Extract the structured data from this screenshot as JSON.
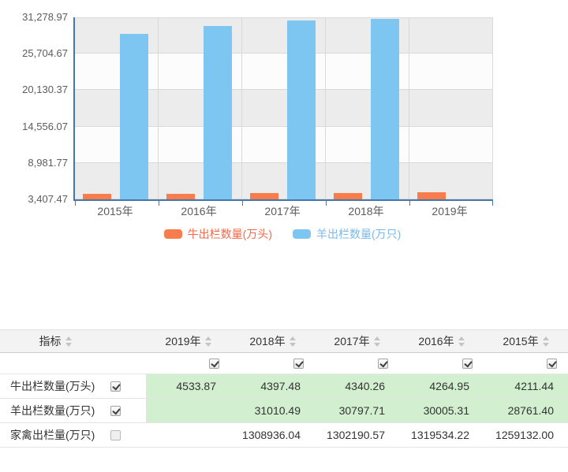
{
  "chart_data": {
    "type": "bar",
    "title": "",
    "categories": [
      "2015年",
      "2016年",
      "2017年",
      "2018年",
      "2019年"
    ],
    "series": [
      {
        "name": "牛出栏数量(万头)",
        "color": "#f97c4c",
        "label_color": "#f2684a",
        "values": [
          4211.44,
          4264.95,
          4340.26,
          4397.48,
          4533.87
        ]
      },
      {
        "name": "羊出栏数量(万只)",
        "color": "#7dc6f2",
        "label_color": "#7cb9e9",
        "values": [
          28761.4,
          30005.31,
          30797.71,
          31010.49,
          null
        ]
      }
    ],
    "ylim": [
      3407.47,
      31278.97
    ],
    "y_tick_labels": [
      "3,407.47",
      "8,981.77",
      "14,556.07",
      "20,130.37",
      "25,704.67",
      "31,278.97"
    ],
    "xlabel": "",
    "ylabel": "",
    "grid": "horizontal-bands-alternating-gray",
    "legend_position": "bottom"
  },
  "table": {
    "columns": [
      "指标",
      "2019年",
      "2018年",
      "2017年",
      "2016年",
      "2015年"
    ],
    "column_checkboxes": [
      true,
      true,
      true,
      true,
      true
    ],
    "rows": [
      {
        "label": "牛出栏数量(万头)",
        "checked": true,
        "values": [
          "4533.87",
          "4397.48",
          "4340.26",
          "4264.95",
          "4211.44"
        ]
      },
      {
        "label": "羊出栏数量(万只)",
        "checked": true,
        "values": [
          "",
          "31010.49",
          "30797.71",
          "30005.31",
          "28761.40"
        ]
      },
      {
        "label": "家禽出栏量(万只)",
        "checked": false,
        "values": [
          "",
          "1308936.04",
          "1302190.57",
          "1319534.22",
          "1259132.00"
        ]
      }
    ],
    "highlight_color": "#d2efcf"
  },
  "colors": {
    "axis": "#4478aa",
    "gridline": "#d9d9d9",
    "band_gray": "#ececec",
    "band_white": "#fcfcfc",
    "header_bg": "#f3f3f3"
  }
}
